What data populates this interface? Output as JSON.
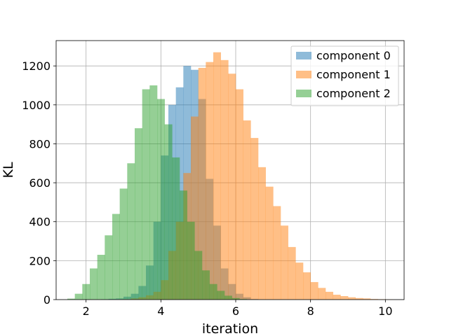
{
  "chart_data": {
    "type": "bar",
    "xlabel": "iteration",
    "ylabel": "KL",
    "xlim": [
      1.2,
      10.5
    ],
    "ylim": [
      0,
      1330
    ],
    "xticks": [
      2,
      4,
      6,
      8,
      10
    ],
    "yticks": [
      0,
      200,
      400,
      600,
      800,
      1000,
      1200
    ],
    "grid": true,
    "legend_position": "top-right",
    "series": [
      {
        "name": "component 0",
        "color": "#1f77b4",
        "bins": [
          {
            "x0": 2.4,
            "x1": 2.6,
            "count": 2
          },
          {
            "x0": 2.6,
            "x1": 2.8,
            "count": 4
          },
          {
            "x0": 2.8,
            "x1": 3.0,
            "count": 6
          },
          {
            "x0": 3.0,
            "x1": 3.2,
            "count": 15
          },
          {
            "x0": 3.2,
            "x1": 3.4,
            "count": 30
          },
          {
            "x0": 3.4,
            "x1": 3.6,
            "count": 70
          },
          {
            "x0": 3.6,
            "x1": 3.8,
            "count": 175
          },
          {
            "x0": 3.8,
            "x1": 4.0,
            "count": 400
          },
          {
            "x0": 4.0,
            "x1": 4.2,
            "count": 740
          },
          {
            "x0": 4.2,
            "x1": 4.4,
            "count": 1000
          },
          {
            "x0": 4.4,
            "x1": 4.6,
            "count": 1090
          },
          {
            "x0": 4.6,
            "x1": 4.8,
            "count": 1200
          },
          {
            "x0": 4.8,
            "x1": 5.0,
            "count": 1180
          },
          {
            "x0": 5.0,
            "x1": 5.2,
            "count": 1030
          },
          {
            "x0": 5.2,
            "x1": 5.4,
            "count": 620
          },
          {
            "x0": 5.4,
            "x1": 5.6,
            "count": 380
          },
          {
            "x0": 5.6,
            "x1": 5.8,
            "count": 160
          },
          {
            "x0": 5.8,
            "x1": 6.0,
            "count": 80
          },
          {
            "x0": 6.0,
            "x1": 6.2,
            "count": 30
          },
          {
            "x0": 6.2,
            "x1": 6.4,
            "count": 12
          },
          {
            "x0": 6.4,
            "x1": 6.6,
            "count": 3
          }
        ]
      },
      {
        "name": "component 1",
        "color": "#ff7f0e",
        "bins": [
          {
            "x0": 3.0,
            "x1": 3.2,
            "count": 2
          },
          {
            "x0": 3.2,
            "x1": 3.4,
            "count": 6
          },
          {
            "x0": 3.4,
            "x1": 3.6,
            "count": 12
          },
          {
            "x0": 3.6,
            "x1": 3.8,
            "count": 22
          },
          {
            "x0": 3.8,
            "x1": 4.0,
            "count": 40
          },
          {
            "x0": 4.0,
            "x1": 4.2,
            "count": 100
          },
          {
            "x0": 4.2,
            "x1": 4.4,
            "count": 250
          },
          {
            "x0": 4.4,
            "x1": 4.6,
            "count": 400
          },
          {
            "x0": 4.6,
            "x1": 4.8,
            "count": 650
          },
          {
            "x0": 4.8,
            "x1": 5.0,
            "count": 940
          },
          {
            "x0": 5.0,
            "x1": 5.2,
            "count": 1190
          },
          {
            "x0": 5.2,
            "x1": 5.4,
            "count": 1220
          },
          {
            "x0": 5.4,
            "x1": 5.6,
            "count": 1270
          },
          {
            "x0": 5.6,
            "x1": 5.8,
            "count": 1230
          },
          {
            "x0": 5.8,
            "x1": 6.0,
            "count": 1160
          },
          {
            "x0": 6.0,
            "x1": 6.2,
            "count": 1080
          },
          {
            "x0": 6.2,
            "x1": 6.4,
            "count": 920
          },
          {
            "x0": 6.4,
            "x1": 6.6,
            "count": 830
          },
          {
            "x0": 6.6,
            "x1": 6.8,
            "count": 680
          },
          {
            "x0": 6.8,
            "x1": 7.0,
            "count": 580
          },
          {
            "x0": 7.0,
            "x1": 7.2,
            "count": 480
          },
          {
            "x0": 7.2,
            "x1": 7.4,
            "count": 380
          },
          {
            "x0": 7.4,
            "x1": 7.6,
            "count": 270
          },
          {
            "x0": 7.6,
            "x1": 7.8,
            "count": 190
          },
          {
            "x0": 7.8,
            "x1": 8.0,
            "count": 140
          },
          {
            "x0": 8.0,
            "x1": 8.2,
            "count": 90
          },
          {
            "x0": 8.2,
            "x1": 8.4,
            "count": 60
          },
          {
            "x0": 8.4,
            "x1": 8.6,
            "count": 40
          },
          {
            "x0": 8.6,
            "x1": 8.8,
            "count": 25
          },
          {
            "x0": 8.8,
            "x1": 9.0,
            "count": 18
          },
          {
            "x0": 9.0,
            "x1": 9.2,
            "count": 12
          },
          {
            "x0": 9.2,
            "x1": 9.4,
            "count": 8
          },
          {
            "x0": 9.4,
            "x1": 9.6,
            "count": 6
          },
          {
            "x0": 9.6,
            "x1": 9.8,
            "count": 3
          },
          {
            "x0": 9.8,
            "x1": 10.0,
            "count": 2
          },
          {
            "x0": 10.0,
            "x1": 10.2,
            "count": 1
          }
        ]
      },
      {
        "name": "component 2",
        "color": "#2ca02c",
        "bins": [
          {
            "x0": 1.5,
            "x1": 1.7,
            "count": 5
          },
          {
            "x0": 1.7,
            "x1": 1.9,
            "count": 30
          },
          {
            "x0": 1.9,
            "x1": 2.1,
            "count": 80
          },
          {
            "x0": 2.1,
            "x1": 2.3,
            "count": 160
          },
          {
            "x0": 2.3,
            "x1": 2.5,
            "count": 230
          },
          {
            "x0": 2.5,
            "x1": 2.7,
            "count": 330
          },
          {
            "x0": 2.7,
            "x1": 2.9,
            "count": 440
          },
          {
            "x0": 2.9,
            "x1": 3.1,
            "count": 570
          },
          {
            "x0": 3.1,
            "x1": 3.3,
            "count": 700
          },
          {
            "x0": 3.3,
            "x1": 3.5,
            "count": 880
          },
          {
            "x0": 3.5,
            "x1": 3.7,
            "count": 1080
          },
          {
            "x0": 3.7,
            "x1": 3.9,
            "count": 1100
          },
          {
            "x0": 3.9,
            "x1": 4.1,
            "count": 1030
          },
          {
            "x0": 4.1,
            "x1": 4.3,
            "count": 900
          },
          {
            "x0": 4.3,
            "x1": 4.5,
            "count": 730
          },
          {
            "x0": 4.5,
            "x1": 4.7,
            "count": 560
          },
          {
            "x0": 4.7,
            "x1": 4.9,
            "count": 400
          },
          {
            "x0": 4.9,
            "x1": 5.1,
            "count": 250
          },
          {
            "x0": 5.1,
            "x1": 5.3,
            "count": 150
          },
          {
            "x0": 5.3,
            "x1": 5.5,
            "count": 80
          },
          {
            "x0": 5.5,
            "x1": 5.7,
            "count": 45
          },
          {
            "x0": 5.7,
            "x1": 5.9,
            "count": 20
          },
          {
            "x0": 5.9,
            "x1": 6.1,
            "count": 8
          },
          {
            "x0": 6.1,
            "x1": 6.3,
            "count": 3
          }
        ]
      }
    ]
  }
}
